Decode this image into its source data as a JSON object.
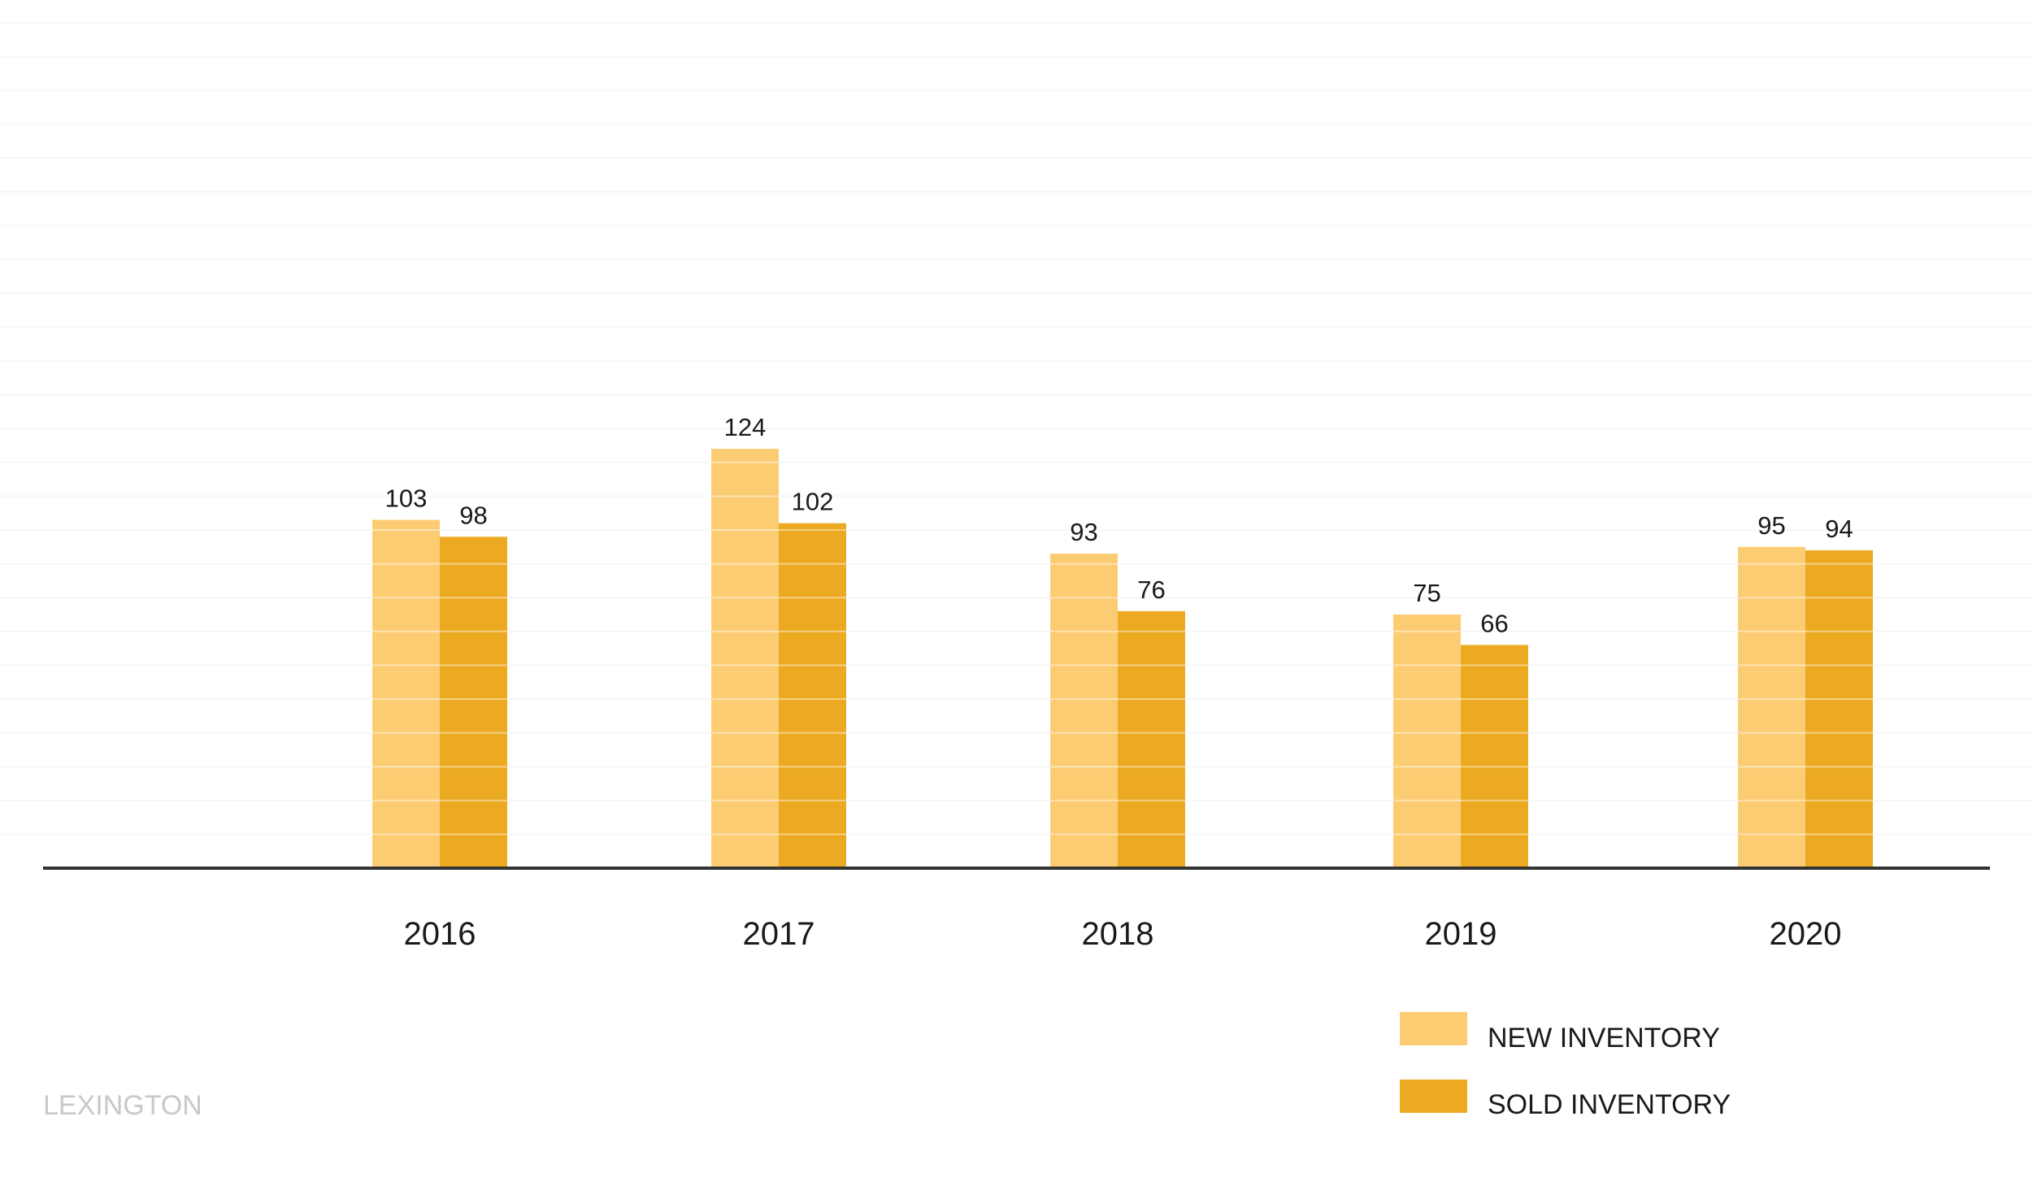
{
  "chart_data": {
    "type": "bar",
    "categories": [
      "2016",
      "2017",
      "2018",
      "2019",
      "2020"
    ],
    "series": [
      {
        "name": "NEW INVENTORY",
        "values": [
          103,
          124,
          93,
          75,
          95
        ],
        "color": "#FCCC73"
      },
      {
        "name": "SOLD INVENTORY",
        "values": [
          98,
          102,
          76,
          66,
          94
        ],
        "color": "#EBAA22"
      }
    ],
    "title": "",
    "xlabel": "",
    "ylabel": "",
    "ylim": [
      0,
      250
    ],
    "grid": true,
    "legend_position": "bottom-right",
    "data_labels": true
  },
  "watermark": "LEXINGTON",
  "colors": {
    "axis": "#333333",
    "grid": "#f1f1f1"
  }
}
